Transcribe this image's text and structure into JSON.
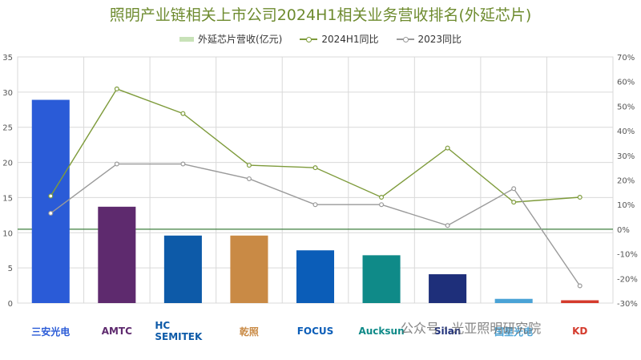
{
  "chart_data": {
    "type": "bar",
    "title": "照明产业链相关上市公司2024H1相关业务营收排名(外延芯片)",
    "categories": [
      "三安光电",
      "AMTC",
      "HC SEMITEK",
      "乾照",
      "FOCUS",
      "Aucksun",
      "Silan",
      "国星光电",
      "KD"
    ],
    "series": [
      {
        "name": "外延芯片营收(亿元)",
        "type": "bar",
        "axis": "left",
        "values": [
          28.9,
          13.7,
          9.6,
          9.6,
          7.5,
          6.8,
          4.1,
          0.6,
          0.4
        ]
      },
      {
        "name": "2024H1同比",
        "type": "line",
        "axis": "right",
        "values": [
          13.5,
          57,
          47,
          26,
          25,
          13,
          33,
          11,
          13
        ]
      },
      {
        "name": "2023同比",
        "type": "line",
        "axis": "right",
        "values": [
          6.5,
          26.5,
          26.5,
          20.5,
          10,
          10,
          1.5,
          16.5,
          -23
        ]
      }
    ],
    "ylim_left": [
      0,
      35
    ],
    "yticks_left": [
      0,
      5,
      10,
      15,
      20,
      25,
      30,
      35
    ],
    "ylim_right": [
      -30,
      70
    ],
    "yticks_right": [
      "-30%",
      "-20%",
      "-10%",
      "0%",
      "10%",
      "20%",
      "30%",
      "40%",
      "50%",
      "60%",
      "70%"
    ],
    "bar_colors": [
      "#2a5bd7",
      "#5e2a6e",
      "#0d5aa8",
      "#c98a45",
      "#0b5db8",
      "#0f8a88",
      "#1e2f7a",
      "#4aa3d6",
      "#d43a2c"
    ],
    "line_colors": {
      "2024H1同比": "#7e9b3b",
      "2023同比": "#9a9a9a"
    },
    "legend_position": "top",
    "grid": true
  },
  "logos": [
    {
      "text": "三安光电",
      "color": "#2a5bd7"
    },
    {
      "text": "AMTC",
      "color": "#5e2a6e"
    },
    {
      "text": "HC SEMITEK",
      "color": "#0d5aa8"
    },
    {
      "text": "乾照",
      "color": "#c98a45"
    },
    {
      "text": "FOCUS",
      "color": "#0b5db8"
    },
    {
      "text": "Aucksun",
      "color": "#0f8a88"
    },
    {
      "text": "Silan",
      "color": "#1e2f7a"
    },
    {
      "text": "国星光电",
      "color": "#4aa3d6"
    },
    {
      "text": "KD",
      "color": "#d43a2c"
    }
  ],
  "watermark": "公众号 · 光亚照明研究院"
}
